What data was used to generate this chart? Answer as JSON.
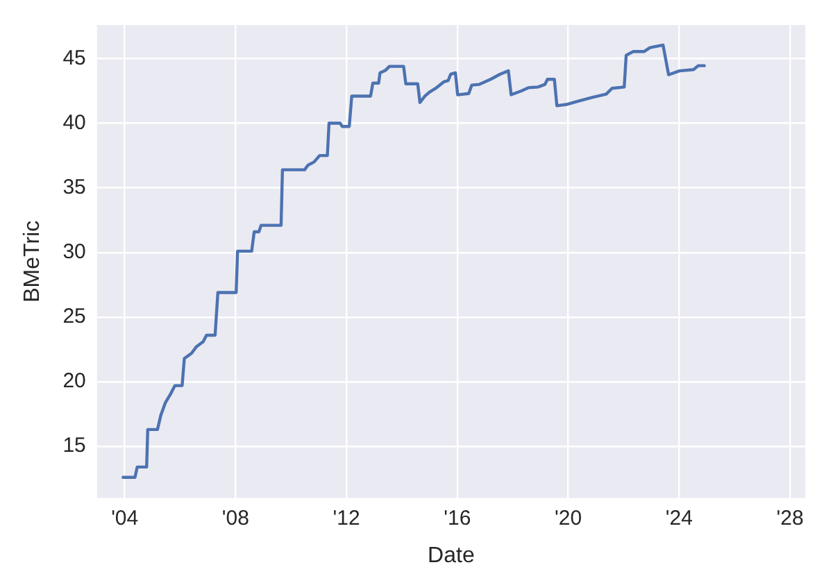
{
  "chart_data": {
    "type": "line",
    "xlabel": "Date",
    "ylabel": "BMeTric",
    "grid": true,
    "legend": false,
    "marker": "none",
    "line_style": "solid",
    "xlim": [
      2003.0,
      2028.55
    ],
    "ylim": [
      11.0,
      47.6
    ],
    "xticks": [
      {
        "value": 2004,
        "label": "'04"
      },
      {
        "value": 2008,
        "label": "'08"
      },
      {
        "value": 2012,
        "label": "'12"
      },
      {
        "value": 2016,
        "label": "'16"
      },
      {
        "value": 2020,
        "label": "'20"
      },
      {
        "value": 2024,
        "label": "'24"
      },
      {
        "value": 2028,
        "label": "'28"
      }
    ],
    "yticks": [
      15,
      20,
      25,
      30,
      35,
      40,
      45
    ],
    "series": [
      {
        "color": "#4c72b0",
        "x": [
          2003.94,
          2004.37,
          2004.45,
          2004.79,
          2004.83,
          2005.18,
          2005.3,
          2005.47,
          2005.64,
          2005.81,
          2006.07,
          2006.15,
          2006.41,
          2006.58,
          2006.83,
          2006.95,
          2007.26,
          2007.36,
          2008.02,
          2008.07,
          2008.58,
          2008.67,
          2008.84,
          2008.92,
          2009.64,
          2009.69,
          2010.49,
          2010.61,
          2010.83,
          2011.03,
          2011.31,
          2011.37,
          2011.77,
          2011.85,
          2012.1,
          2012.19,
          2012.87,
          2012.95,
          2013.16,
          2013.21,
          2013.41,
          2013.55,
          2014.06,
          2014.14,
          2014.57,
          2014.65,
          2014.83,
          2014.99,
          2015.25,
          2015.51,
          2015.67,
          2015.76,
          2015.93,
          2016.01,
          2016.41,
          2016.52,
          2016.78,
          2017.2,
          2017.55,
          2017.84,
          2017.94,
          2018.31,
          2018.57,
          2018.91,
          2019.16,
          2019.25,
          2019.5,
          2019.59,
          2019.93,
          2020.35,
          2020.86,
          2021.37,
          2021.58,
          2022.02,
          2022.09,
          2022.35,
          2022.74,
          2022.95,
          2023.42,
          2023.62,
          2024.01,
          2024.52,
          2024.69,
          2024.91
        ],
        "values": [
          12.6,
          12.6,
          13.4,
          13.4,
          16.3,
          16.3,
          17.4,
          18.4,
          19.0,
          19.7,
          19.7,
          21.8,
          22.2,
          22.7,
          23.1,
          23.6,
          23.6,
          26.9,
          26.9,
          30.1,
          30.1,
          31.6,
          31.6,
          32.1,
          32.1,
          36.4,
          36.4,
          36.75,
          37.0,
          37.5,
          37.5,
          40.0,
          40.0,
          39.75,
          39.75,
          42.1,
          42.1,
          43.1,
          43.1,
          43.9,
          44.1,
          44.4,
          44.4,
          43.05,
          43.05,
          41.6,
          42.1,
          42.4,
          42.75,
          43.2,
          43.3,
          43.8,
          43.9,
          42.2,
          42.3,
          42.95,
          43.0,
          43.4,
          43.8,
          44.05,
          42.2,
          42.5,
          42.75,
          42.8,
          43.0,
          43.4,
          43.4,
          41.35,
          41.45,
          41.7,
          42.0,
          42.25,
          42.7,
          42.8,
          45.25,
          45.55,
          45.55,
          45.85,
          46.05,
          43.75,
          44.05,
          44.15,
          44.45,
          44.45
        ]
      }
    ]
  }
}
